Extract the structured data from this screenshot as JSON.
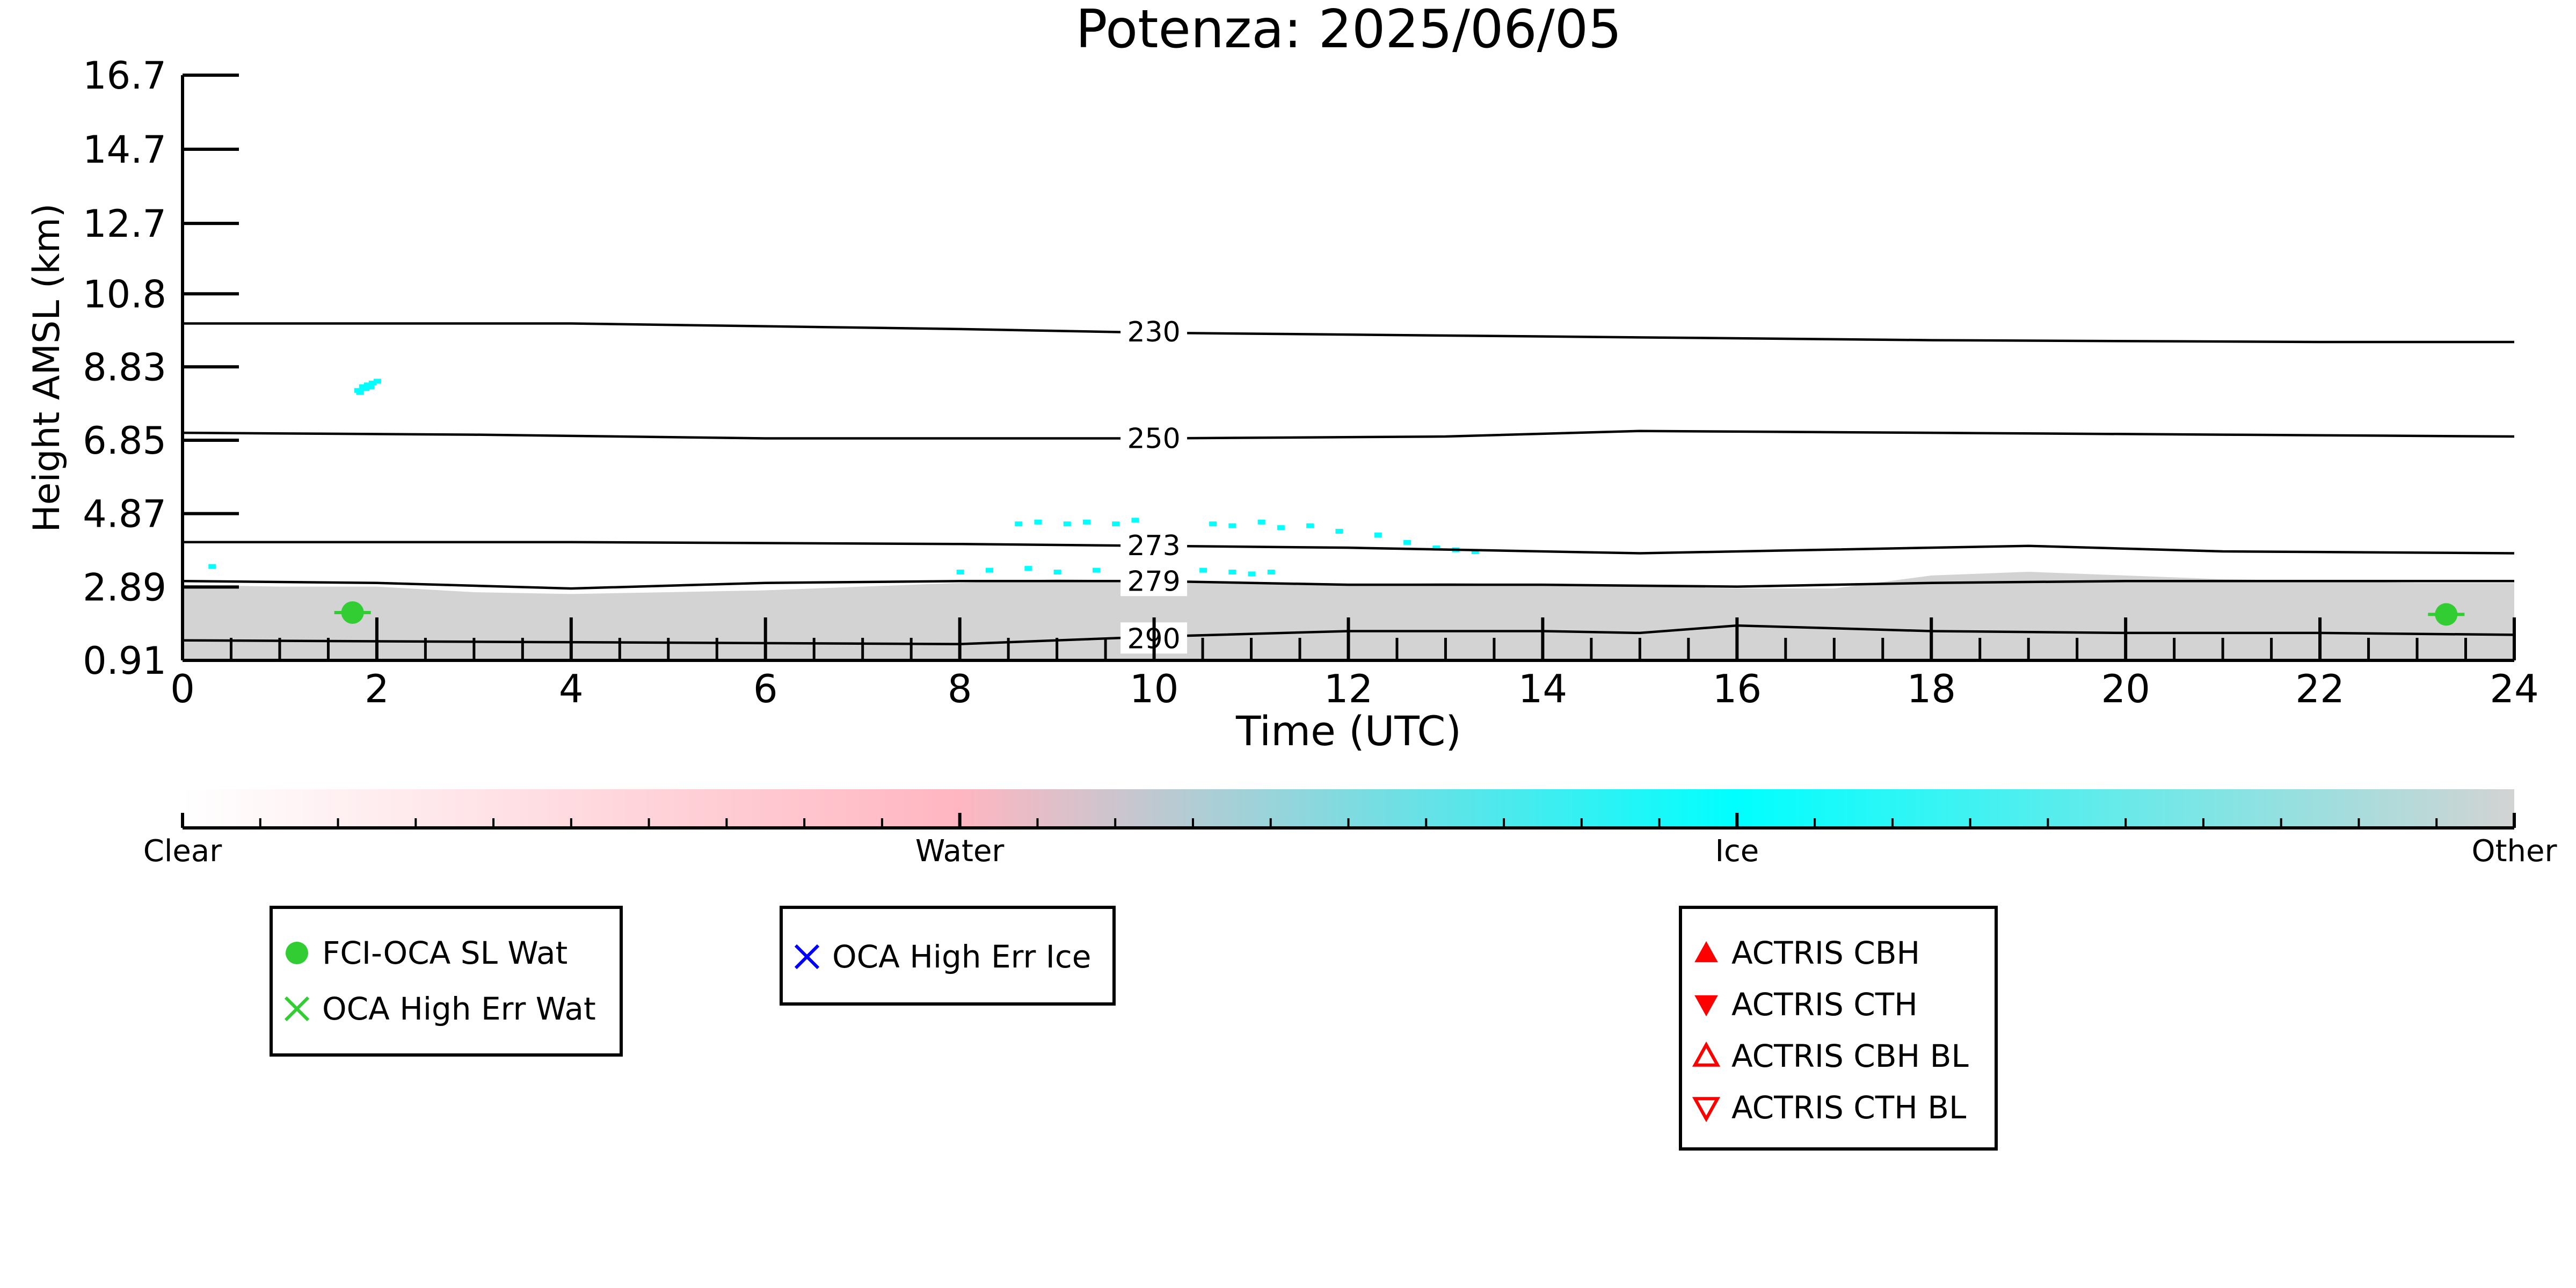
{
  "chart_data": {
    "type": "line",
    "title": "Potenza: 2025/06/05",
    "xlabel": "Time (UTC)",
    "ylabel": "Height AMSL (km)",
    "xlim": [
      0,
      24
    ],
    "ylim": [
      0.91,
      16.7
    ],
    "xticks": [
      0,
      2,
      4,
      6,
      8,
      10,
      12,
      14,
      16,
      18,
      20,
      22,
      24
    ],
    "yticks": [
      "0.91",
      "2.89",
      "4.87",
      "6.85",
      "8.83",
      "10.8",
      "12.7",
      "14.7",
      "16.7"
    ],
    "ytick_values": [
      0.91,
      2.89,
      4.87,
      6.85,
      8.83,
      10.8,
      12.7,
      14.7,
      16.7
    ],
    "grid": false,
    "isotherms": [
      {
        "name": "230",
        "x": [
          0,
          4,
          8,
          10,
          14,
          18,
          22,
          24
        ],
        "y": [
          10.0,
          10.0,
          9.85,
          9.75,
          9.65,
          9.55,
          9.5,
          9.5
        ]
      },
      {
        "name": "250",
        "x": [
          0,
          3,
          6,
          8,
          10,
          13,
          15,
          18,
          21,
          24
        ],
        "y": [
          7.05,
          7.0,
          6.9,
          6.9,
          6.9,
          6.95,
          7.1,
          7.05,
          7.0,
          6.95
        ]
      },
      {
        "name": "273",
        "x": [
          0,
          4,
          8,
          10,
          12,
          15,
          17,
          19,
          21,
          24
        ],
        "y": [
          4.1,
          4.1,
          4.05,
          4.0,
          3.95,
          3.8,
          3.9,
          4.0,
          3.85,
          3.8
        ]
      },
      {
        "name": "279",
        "x": [
          0,
          2,
          4,
          6,
          8,
          10,
          12,
          14,
          16,
          17,
          18,
          20,
          22,
          24
        ],
        "y": [
          3.05,
          3.0,
          2.85,
          3.0,
          3.05,
          3.05,
          2.95,
          2.95,
          2.9,
          2.95,
          3.0,
          3.05,
          3.05,
          3.05
        ]
      },
      {
        "name": "290",
        "x": [
          0,
          4,
          8,
          10,
          12,
          14,
          15,
          16,
          18,
          20,
          22,
          24
        ],
        "y": [
          1.45,
          1.4,
          1.35,
          1.55,
          1.7,
          1.7,
          1.65,
          1.85,
          1.7,
          1.65,
          1.65,
          1.6
        ]
      }
    ],
    "isotherm_label_x": 9.5,
    "ground_fill": {
      "x": [
        0,
        1,
        2,
        3,
        4,
        5,
        6,
        7,
        8,
        9,
        10,
        11,
        12,
        13,
        14,
        15,
        16,
        17,
        18,
        19,
        20,
        21,
        22,
        23,
        24
      ],
      "y": [
        2.95,
        2.9,
        2.9,
        2.75,
        2.7,
        2.75,
        2.8,
        2.9,
        3.0,
        3.1,
        3.05,
        3.0,
        2.95,
        3.0,
        2.95,
        2.9,
        2.85,
        2.85,
        3.2,
        3.3,
        3.2,
        3.1,
        3.05,
        3.0,
        3.0
      ],
      "class": "Other"
    },
    "ice_points": {
      "x": [
        1.8,
        1.85,
        1.9,
        1.95,
        2.0,
        1.82,
        1.88,
        1.93,
        8.6,
        8.8,
        9.1,
        9.3,
        9.6,
        9.8,
        10.6,
        10.8,
        11.1,
        11.3,
        11.6,
        11.9,
        12.3,
        12.6,
        12.9,
        13.1,
        13.3,
        8.0,
        8.3,
        8.7,
        9.0,
        9.4,
        9.7,
        10.0,
        10.2,
        10.5,
        10.8,
        11.0,
        11.2,
        0.3
      ],
      "y": [
        8.2,
        8.3,
        8.35,
        8.4,
        8.45,
        8.15,
        8.25,
        8.3,
        4.6,
        4.65,
        4.6,
        4.65,
        4.6,
        4.7,
        4.6,
        4.55,
        4.65,
        4.5,
        4.55,
        4.4,
        4.3,
        4.1,
        3.95,
        3.9,
        3.85,
        3.3,
        3.35,
        3.4,
        3.3,
        3.35,
        3.25,
        3.3,
        3.4,
        3.35,
        3.3,
        3.25,
        3.3,
        3.45
      ],
      "class": "Ice"
    },
    "fci_oca_sl_wat": {
      "x": [
        1.75,
        23.3
      ],
      "y": [
        2.2,
        2.15
      ]
    },
    "colorbar": {
      "labels": [
        "Clear",
        "Water",
        "Ice",
        "Other"
      ],
      "colors": [
        "#ffffff",
        "#ffb6c1",
        "#00ffff",
        "#d3d3d3"
      ]
    },
    "legends": [
      {
        "entries": [
          {
            "label": "FCI-OCA SL Wat",
            "marker": "filled-circle",
            "color": "#32cd32"
          },
          {
            "label": "OCA High Err Wat",
            "marker": "x",
            "color": "#32cd32"
          }
        ]
      },
      {
        "entries": [
          {
            "label": "OCA High Err Ice",
            "marker": "x",
            "color": "#0000ff"
          }
        ]
      },
      {
        "entries": [
          {
            "label": "ACTRIS CBH",
            "marker": "triangle-up",
            "color": "#ff0000"
          },
          {
            "label": "ACTRIS CTH",
            "marker": "triangle-down",
            "color": "#ff0000"
          },
          {
            "label": "ACTRIS CBH BL",
            "marker": "triangle-up-open",
            "color": "#ff0000"
          },
          {
            "label": "ACTRIS CTH BL",
            "marker": "triangle-down-open",
            "color": "#ff0000"
          }
        ]
      }
    ],
    "colors": {
      "ground": "#d3d3d3",
      "isotherm": "#000000",
      "ice": "#00ffff",
      "water_marker": "#32cd32"
    }
  }
}
